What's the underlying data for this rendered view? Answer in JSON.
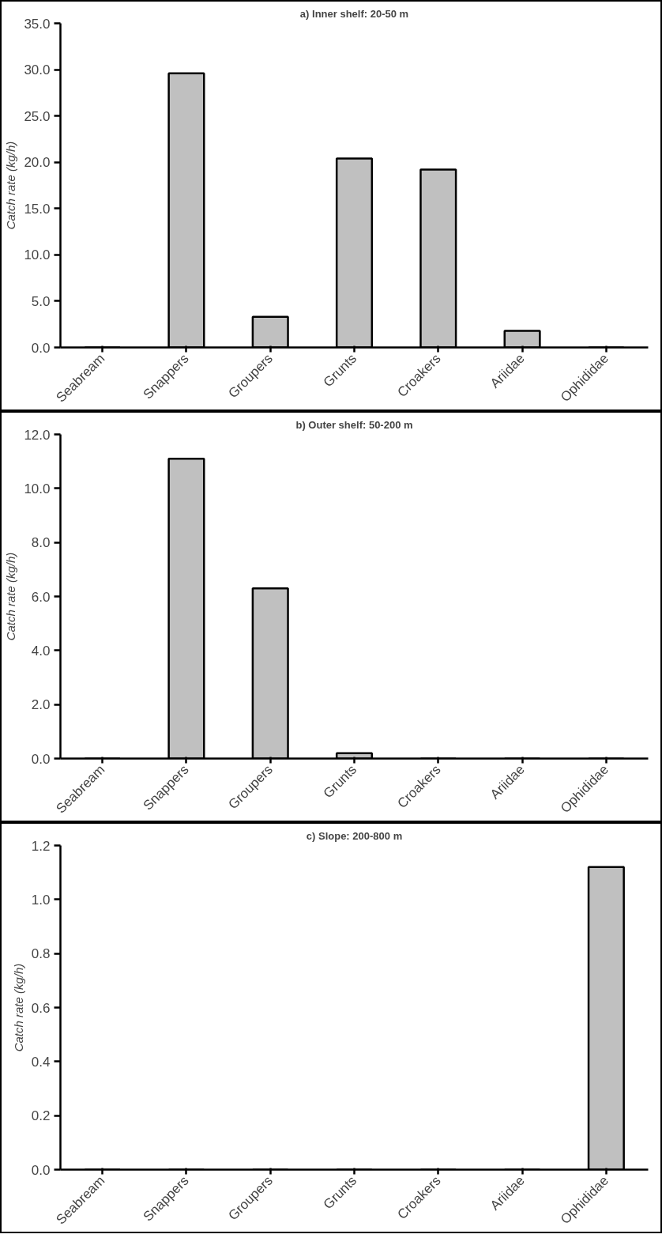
{
  "chart_data": [
    {
      "type": "bar",
      "title": "a) Inner shelf: 20-50 m",
      "ylabel": "Catch rate (kg/h)",
      "categories": [
        "Seabream",
        "Snappers",
        "Groupers",
        "Grunts",
        "Croakers",
        "Ariidae",
        "Ophididae"
      ],
      "values": [
        0,
        29.6,
        3.3,
        20.4,
        19.2,
        1.8,
        0
      ],
      "color": "#c0c0c0",
      "ylim": [
        0,
        35
      ],
      "yticks": [
        {
          "value": 0,
          "label": "0.0"
        },
        {
          "value": 5,
          "label": "5.0"
        },
        {
          "value": 10,
          "label": "10.0"
        },
        {
          "value": 15,
          "label": "15.0"
        },
        {
          "value": 20,
          "label": "20.0"
        },
        {
          "value": 25,
          "label": "25.0"
        },
        {
          "value": 30,
          "label": "30.0"
        },
        {
          "value": 35,
          "label": "35.0"
        }
      ],
      "grid": false
    },
    {
      "type": "bar",
      "title": "b) Outer shelf: 50-200 m",
      "ylabel": "Catch rate (kg/h)",
      "categories": [
        "Seabream",
        "Snappers",
        "Groupers",
        "Grunts",
        "Croakers",
        "Ariidae",
        "Ophididae"
      ],
      "values": [
        0,
        11.1,
        6.3,
        0.2,
        0,
        0,
        0
      ],
      "color": "#c0c0c0",
      "ylim": [
        0,
        12
      ],
      "yticks": [
        {
          "value": 0,
          "label": "0.0"
        },
        {
          "value": 2,
          "label": "2.0"
        },
        {
          "value": 4,
          "label": "4.0"
        },
        {
          "value": 6,
          "label": "6.0"
        },
        {
          "value": 8,
          "label": "8.0"
        },
        {
          "value": 10,
          "label": "10.0"
        },
        {
          "value": 12,
          "label": "12.0"
        }
      ],
      "grid": false
    },
    {
      "type": "bar",
      "title": "c) Slope: 200-800 m",
      "ylabel": "Catch rate (kg/h)",
      "categories": [
        "Seabream",
        "Snappers",
        "Groupers",
        "Grunts",
        "Croakers",
        "Ariidae",
        "Ophididae"
      ],
      "values": [
        0,
        0,
        0,
        0,
        0,
        0,
        1.12
      ],
      "color": "#c0c0c0",
      "ylim": [
        0,
        1.2
      ],
      "yticks": [
        {
          "value": 0,
          "label": "0.0"
        },
        {
          "value": 0.2,
          "label": "0.2"
        },
        {
          "value": 0.4,
          "label": "0.4"
        },
        {
          "value": 0.6,
          "label": "0.6"
        },
        {
          "value": 0.8,
          "label": "0.8"
        },
        {
          "value": 1.0,
          "label": "1.0"
        },
        {
          "value": 1.2,
          "label": "1.2"
        }
      ],
      "grid": false
    }
  ]
}
